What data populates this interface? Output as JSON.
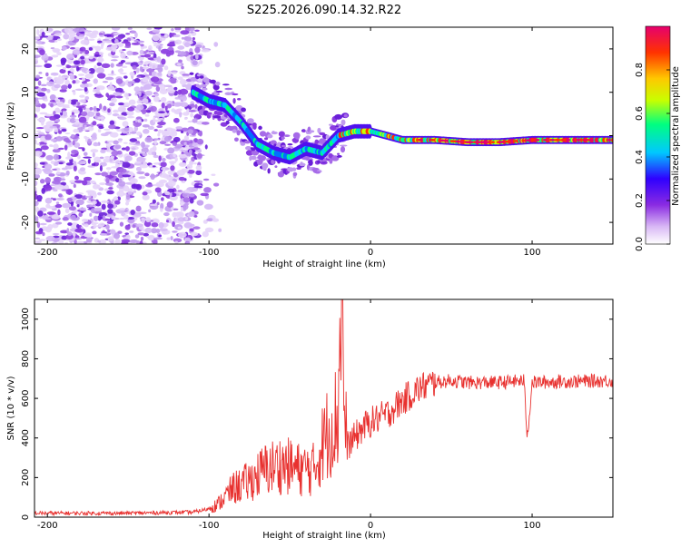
{
  "title": "S225.2026.090.14.32.R22",
  "colorbar": {
    "label": "Normalized spectral amplitude",
    "range": [
      0,
      1
    ],
    "ticks": [
      "0.0",
      "0.2",
      "0.4",
      "0.6",
      "0.8"
    ],
    "tick_values": [
      0,
      0.2,
      0.4,
      0.6,
      0.8
    ],
    "colors": [
      "#ffffff",
      "#d9b8f5",
      "#8a2be2",
      "#2f00ff",
      "#00c8ff",
      "#00ff80",
      "#c8ff00",
      "#ffc800",
      "#ff3200",
      "#e6006e"
    ]
  },
  "chart_data": [
    {
      "type": "heatmap",
      "name": "spectrogram",
      "xlabel": "Height of straight line (km)",
      "ylabel": "Frequency (Hz)",
      "xlim": [
        -208,
        150
      ],
      "ylim": [
        -25,
        25
      ],
      "xticks": [
        -200,
        -100,
        0,
        100
      ],
      "yticks": [
        -20,
        -10,
        0,
        10,
        20
      ],
      "ridge": {
        "x": [
          -110,
          -100,
          -90,
          -80,
          -70,
          -60,
          -50,
          -40,
          -30,
          -20,
          -10,
          0,
          10,
          20,
          40,
          60,
          80,
          100,
          120,
          150
        ],
        "freq": [
          10,
          8,
          7,
          3,
          -2,
          -4,
          -5,
          -3,
          -4,
          0,
          1,
          1,
          0,
          -1,
          -1,
          -1.5,
          -1.5,
          -1,
          -1,
          -1
        ]
      },
      "noise_region_x": [
        -208,
        -105
      ]
    },
    {
      "type": "line",
      "name": "snr",
      "xlabel": "Height of straight line (km)",
      "ylabel": "SNR (10 * v/v)",
      "xlim": [
        -208,
        150
      ],
      "ylim": [
        0,
        1100
      ],
      "xticks": [
        -200,
        -100,
        0,
        100
      ],
      "yticks": [
        0,
        200,
        400,
        600,
        800,
        1000
      ],
      "series": [
        {
          "name": "SNR",
          "color": "#e8312f",
          "x": [
            -208,
            -150,
            -110,
            -95,
            -85,
            -75,
            -65,
            -55,
            -45,
            -35,
            -30,
            -25,
            -20,
            -18,
            -16,
            -10,
            -5,
            0,
            10,
            20,
            30,
            40,
            50,
            60,
            80,
            95,
            97,
            100,
            120,
            150
          ],
          "values": [
            20,
            20,
            25,
            50,
            120,
            150,
            200,
            220,
            200,
            200,
            300,
            380,
            420,
            1100,
            350,
            400,
            450,
            480,
            520,
            590,
            650,
            680,
            690,
            680,
            680,
            690,
            400,
            680,
            685,
            690
          ]
        }
      ]
    }
  ]
}
